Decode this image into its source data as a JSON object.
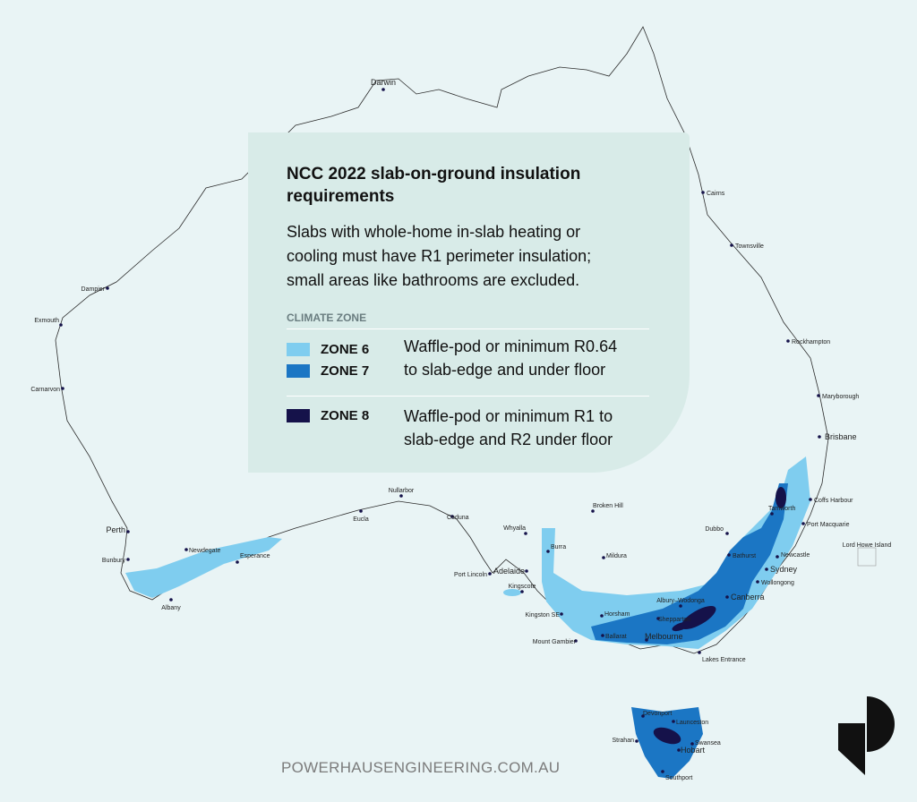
{
  "header": {
    "title": [
      "NCC 2022 slab-on-ground insulation",
      "requirements"
    ],
    "description": [
      "Slabs with whole-home in-slab heating or",
      "cooling must have R1 perimeter insulation;",
      "small areas like bathrooms are excluded."
    ]
  },
  "legend": {
    "heading": "CLIMATE ZONE",
    "groups": [
      {
        "zones": [
          {
            "name": "ZONE 6",
            "color": "#7fcdef"
          },
          {
            "name": "ZONE 7",
            "color": "#1b76c4"
          }
        ],
        "description": [
          "Waffle-pod or minimum R0.64",
          "to slab-edge and under floor"
        ]
      },
      {
        "zones": [
          {
            "name": "ZONE 8",
            "color": "#15124a"
          }
        ],
        "description": [
          "Waffle-pod or minimum R1 to",
          "slab-edge and R2 under floor"
        ]
      }
    ]
  },
  "cities": [
    "Darwin",
    "Cairns",
    "Townsville",
    "Dampier",
    "Exmouth",
    "Rockhampton",
    "Carnarvon",
    "Maryborough",
    "Brisbane",
    "Coffs Harbour",
    "Nullarbor",
    "Eucla",
    "Ceduna",
    "Whyalla",
    "Broken Hill",
    "Tamworth",
    "Port Macquarie",
    "Dubbo",
    "Perth",
    "Newdegate",
    "Esperance",
    "Burra",
    "Mildura",
    "Port Lincoln",
    "Adelaide",
    "Bathurst",
    "Newcastle",
    "Sydney",
    "Wollongong",
    "Bunbury",
    "Kingscote",
    "Canberra",
    "Albany",
    "Albury–Wodonga",
    "Horsham",
    "Shepparton",
    "Kingston SE",
    "Ballarat",
    "Melbourne",
    "Mount Gambier",
    "Lakes Entrance",
    "Devonport",
    "Launceston",
    "Strahan",
    "Swansea",
    "Hobart",
    "Southport",
    "Lord Howe Island"
  ],
  "footer": {
    "url": "POWERHAUSENGINEERING.COM.AU"
  }
}
